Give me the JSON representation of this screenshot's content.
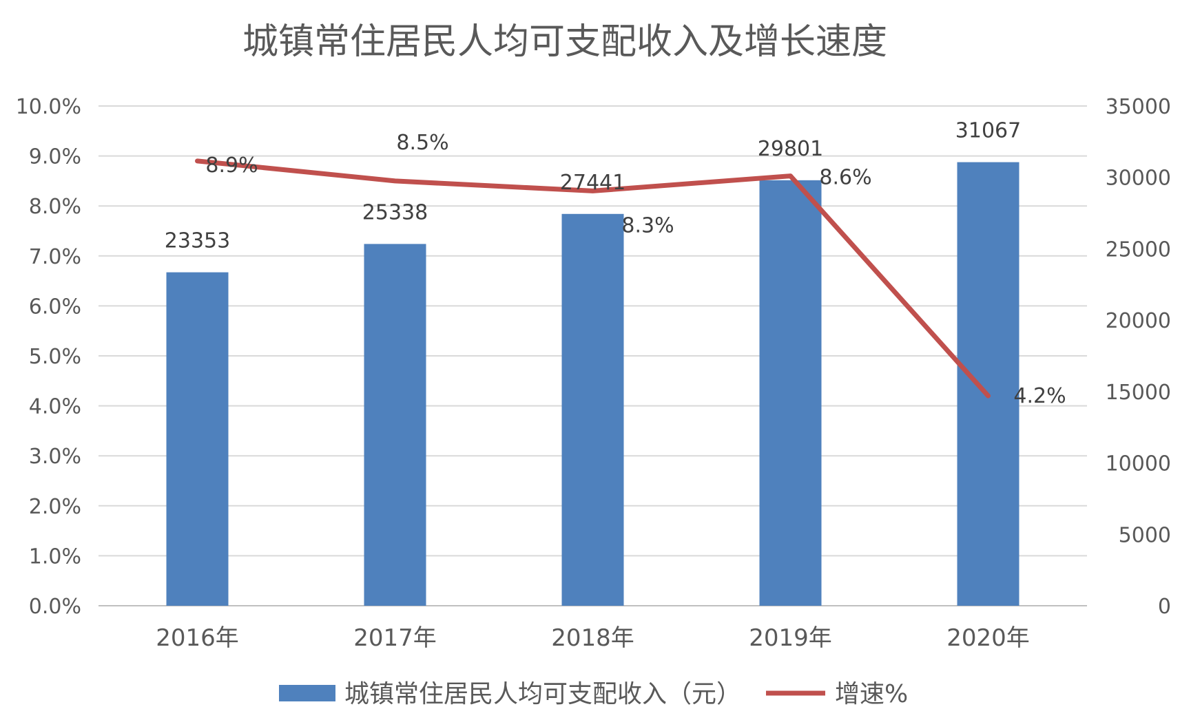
{
  "chart_data": {
    "type": "bar",
    "title": "城镇常住居民人均可支配收入及增长速度",
    "categories": [
      "2016年",
      "2017年",
      "2018年",
      "2019年",
      "2020年"
    ],
    "series": [
      {
        "name": "城镇常住居民人均可支配收入（元）",
        "type": "bar",
        "axis": "right",
        "color": "#4F81BD",
        "values": [
          23353,
          25338,
          27441,
          29801,
          31067
        ],
        "labels": [
          "23353",
          "25338",
          "27441",
          "29801",
          "31067"
        ]
      },
      {
        "name": "增速%",
        "type": "line",
        "axis": "left",
        "color": "#C0504D",
        "values": [
          8.9,
          8.5,
          8.3,
          8.6,
          4.2
        ],
        "labels": [
          "8.9%",
          "8.5%",
          "8.3%",
          "8.6%",
          "4.2%"
        ]
      }
    ],
    "y_left": {
      "min": 0,
      "max": 10,
      "step": 1,
      "ticks": [
        "0.0%",
        "1.0%",
        "2.0%",
        "3.0%",
        "4.0%",
        "5.0%",
        "6.0%",
        "7.0%",
        "8.0%",
        "9.0%",
        "10.0%"
      ]
    },
    "y_right": {
      "min": 0,
      "max": 35000,
      "step": 5000,
      "ticks": [
        "0",
        "5000",
        "10000",
        "15000",
        "20000",
        "25000",
        "30000",
        "35000"
      ]
    },
    "grid": true,
    "legend_position": "bottom"
  }
}
